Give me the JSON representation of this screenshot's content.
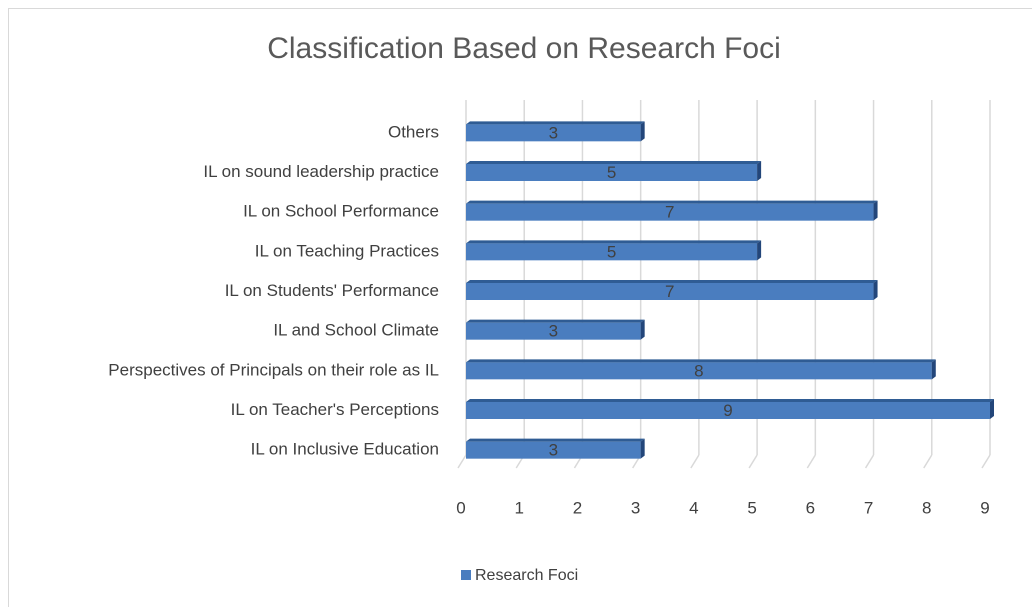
{
  "chart_data": {
    "type": "bar",
    "orientation": "horizontal",
    "title": "Classification Based on Research Foci",
    "categories": [
      "Others",
      "IL on sound leadership practice",
      "IL on School Performance",
      "IL on Teaching Practices",
      "IL on Students' Performance",
      "IL and School Climate",
      "Perspectives of Principals on their role as IL",
      "IL on Teacher's Perceptions",
      "IL on Inclusive Education"
    ],
    "series": [
      {
        "name": "Research Foci",
        "color": "#4a7dbf",
        "values": [
          3,
          5,
          7,
          5,
          7,
          3,
          8,
          9,
          3
        ]
      }
    ],
    "xlim": [
      0,
      9
    ],
    "xticks": [
      0,
      1,
      2,
      3,
      4,
      5,
      6,
      7,
      8,
      9
    ],
    "grid": true,
    "legend": "bottom"
  }
}
